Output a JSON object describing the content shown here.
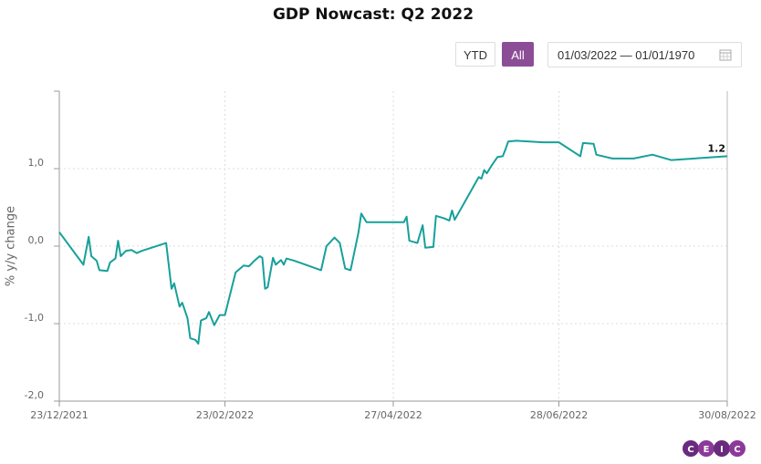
{
  "chart_data": {
    "type": "line",
    "title": "GDP Nowcast: Q2 2022",
    "ylabel": "% y/y change",
    "x": [
      "2021-12-23",
      "2022-01-01",
      "2022-01-03",
      "2022-01-04",
      "2022-01-06",
      "2022-01-07",
      "2022-01-10",
      "2022-01-11",
      "2022-01-13",
      "2022-01-14",
      "2022-01-15",
      "2022-01-17",
      "2022-01-19",
      "2022-01-21",
      "2022-01-23",
      "2022-02-01",
      "2022-02-03",
      "2022-02-04",
      "2022-02-06",
      "2022-02-07",
      "2022-02-09",
      "2022-02-10",
      "2022-02-12",
      "2022-02-13",
      "2022-02-14",
      "2022-02-16",
      "2022-02-17",
      "2022-02-19",
      "2022-02-21",
      "2022-02-23",
      "2022-02-27",
      "2022-03-02",
      "2022-03-04",
      "2022-03-06",
      "2022-03-08",
      "2022-03-09",
      "2022-03-10",
      "2022-03-11",
      "2022-03-13",
      "2022-03-14",
      "2022-03-16",
      "2022-03-17",
      "2022-03-18",
      "2022-03-21",
      "2022-03-31",
      "2022-04-02",
      "2022-04-05",
      "2022-04-07",
      "2022-04-09",
      "2022-04-11",
      "2022-04-14",
      "2022-04-15",
      "2022-04-17",
      "2022-04-20",
      "2022-05-01",
      "2022-05-02",
      "2022-05-03",
      "2022-05-06",
      "2022-05-08",
      "2022-05-09",
      "2022-05-12",
      "2022-05-13",
      "2022-05-16",
      "2022-05-18",
      "2022-05-19",
      "2022-05-20",
      "2022-05-29",
      "2022-05-30",
      "2022-05-31",
      "2022-06-01",
      "2022-06-03",
      "2022-06-05",
      "2022-06-07",
      "2022-06-08",
      "2022-06-09",
      "2022-06-12",
      "2022-06-22",
      "2022-06-28",
      "2022-07-06",
      "2022-07-07",
      "2022-07-11",
      "2022-07-12",
      "2022-07-18",
      "2022-07-26",
      "2022-08-02",
      "2022-08-09",
      "2022-08-30"
    ],
    "values": [
      0.18,
      -0.24,
      0.12,
      -0.13,
      -0.19,
      -0.31,
      -0.32,
      -0.21,
      -0.16,
      0.07,
      -0.13,
      -0.06,
      -0.05,
      -0.09,
      -0.06,
      0.04,
      -0.55,
      -0.48,
      -0.78,
      -0.73,
      -0.93,
      -1.19,
      -1.21,
      -1.26,
      -0.96,
      -0.93,
      -0.85,
      -1.02,
      -0.89,
      -0.89,
      -0.34,
      -0.25,
      -0.26,
      -0.19,
      -0.13,
      -0.15,
      -0.55,
      -0.53,
      -0.15,
      -0.24,
      -0.18,
      -0.24,
      -0.16,
      -0.19,
      -0.31,
      0.0,
      0.11,
      0.04,
      -0.29,
      -0.31,
      0.18,
      0.42,
      0.31,
      0.31,
      0.31,
      0.38,
      0.07,
      0.04,
      0.27,
      -0.02,
      -0.01,
      0.39,
      0.36,
      0.33,
      0.46,
      0.34,
      0.89,
      0.87,
      0.98,
      0.94,
      1.05,
      1.15,
      1.16,
      1.25,
      1.35,
      1.36,
      1.34,
      1.34,
      1.16,
      1.33,
      1.32,
      1.18,
      1.13,
      1.13,
      1.18,
      1.11,
      1.16
    ],
    "last_value_label": "1.2",
    "color": "#17a09a",
    "xlim": [
      "2021-12-23",
      "2022-08-30"
    ],
    "xticks": [
      {
        "value": "2021-12-23",
        "label": "23/12/2021"
      },
      {
        "value": "2022-02-23",
        "label": "23/02/2022"
      },
      {
        "value": "2022-04-27",
        "label": "27/04/2022"
      },
      {
        "value": "2022-06-28",
        "label": "28/06/2022"
      },
      {
        "value": "2022-08-30",
        "label": "30/08/2022"
      }
    ],
    "ylim": [
      -2,
      2
    ],
    "yticks": [
      {
        "value": -2,
        "label": "-2,0"
      },
      {
        "value": -1,
        "label": "-1,0"
      },
      {
        "value": 0,
        "label": "0,0"
      },
      {
        "value": 1,
        "label": "1,0"
      }
    ],
    "grid": true
  },
  "controls": {
    "buttons": [
      "YTD",
      "All"
    ],
    "date_range": "01/03/2022 — 01/01/1970"
  },
  "logo": [
    "C",
    "E",
    "I",
    "C"
  ]
}
